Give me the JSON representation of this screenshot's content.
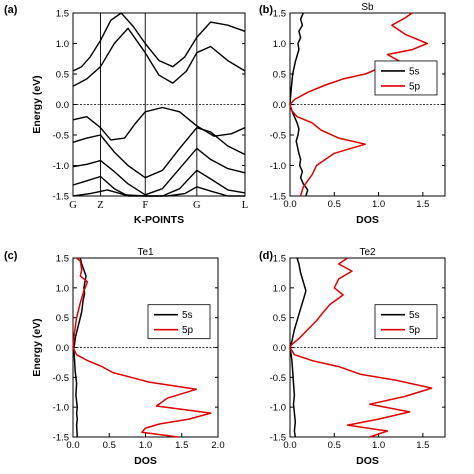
{
  "chart_data": [
    {
      "panel": "(a)",
      "type": "line",
      "xlabel": "K-POINTS",
      "ylabel": "Energy (eV)",
      "ylim": [
        -1.5,
        1.5
      ],
      "y_ticks": [
        "-1.5",
        "-1.0",
        "-0.5",
        "0.0",
        "0.5",
        "1.0",
        "1.5"
      ],
      "k_points": [
        "G",
        "Z",
        "F",
        "G",
        "L"
      ],
      "k_positions": [
        0,
        0.16,
        0.42,
        0.72,
        1.0
      ],
      "series": [
        {
          "x": [
            0,
            0.05,
            0.1,
            0.16,
            0.22,
            0.28,
            0.35,
            0.42,
            0.5,
            0.58,
            0.65,
            0.72,
            0.8,
            0.9,
            1.0
          ],
          "y": [
            0.55,
            0.62,
            0.78,
            1.05,
            1.38,
            1.5,
            1.28,
            1.0,
            0.72,
            0.62,
            0.78,
            1.1,
            1.35,
            1.3,
            1.2
          ]
        },
        {
          "x": [
            0,
            0.08,
            0.16,
            0.24,
            0.32,
            0.42,
            0.5,
            0.58,
            0.66,
            0.72,
            0.8,
            0.9,
            1.0
          ],
          "y": [
            0.3,
            0.42,
            0.62,
            1.0,
            1.25,
            0.85,
            0.48,
            0.35,
            0.55,
            0.85,
            0.95,
            0.72,
            0.55
          ]
        },
        {
          "x": [
            0,
            0.08,
            0.16,
            0.22,
            0.3,
            0.36,
            0.42,
            0.52,
            0.62,
            0.72,
            0.82,
            0.92,
            1.0
          ],
          "y": [
            -0.25,
            -0.2,
            -0.38,
            -0.58,
            -0.55,
            -0.32,
            -0.12,
            -0.05,
            -0.12,
            -0.35,
            -0.52,
            -0.48,
            -0.38
          ]
        },
        {
          "x": [
            0,
            0.08,
            0.16,
            0.24,
            0.32,
            0.42,
            0.52,
            0.62,
            0.72,
            0.8,
            0.9,
            1.0
          ],
          "y": [
            -0.62,
            -0.55,
            -0.5,
            -0.78,
            -1.0,
            -1.2,
            -1.08,
            -0.72,
            -0.38,
            -0.45,
            -0.68,
            -0.82
          ]
        },
        {
          "x": [
            0,
            0.08,
            0.16,
            0.24,
            0.32,
            0.42,
            0.52,
            0.62,
            0.72,
            0.8,
            0.9,
            1.0
          ],
          "y": [
            -1.02,
            -0.98,
            -0.92,
            -1.1,
            -1.3,
            -1.48,
            -1.38,
            -1.05,
            -0.72,
            -0.9,
            -1.05,
            -1.12
          ]
        },
        {
          "x": [
            0,
            0.08,
            0.16,
            0.24,
            0.32,
            0.42,
            0.52,
            0.62,
            0.72,
            0.8,
            0.9,
            1.0
          ],
          "y": [
            -1.32,
            -1.25,
            -1.18,
            -1.38,
            -1.5,
            -1.5,
            -1.5,
            -1.38,
            -1.08,
            -1.22,
            -1.4,
            -1.45
          ]
        },
        {
          "x": [
            0,
            0.1,
            0.2,
            0.3,
            0.42,
            0.55,
            0.65,
            0.72,
            0.8,
            0.9,
            1.0
          ],
          "y": [
            -1.5,
            -1.46,
            -1.4,
            -1.48,
            -1.5,
            -1.5,
            -1.46,
            -1.35,
            -1.42,
            -1.5,
            -1.5
          ]
        }
      ]
    },
    {
      "panel": "(b)",
      "type": "line",
      "title": "Sb",
      "xlabel": "DOS",
      "xlim": [
        0,
        1.75
      ],
      "ylim": [
        -1.5,
        1.5
      ],
      "x_ticks": [
        "0.0",
        "0.5",
        "1.0",
        "1.5"
      ],
      "y_ticks": [
        "-1.5",
        "-1.0",
        "-0.5",
        "0.0",
        "0.5",
        "1.0",
        "1.5"
      ],
      "legend": [
        "5s",
        "5p"
      ],
      "legend_position": "center-right",
      "colors": {
        "5s": "#000000",
        "5p": "#e00000"
      },
      "series": [
        {
          "name": "5s",
          "x": [
            0.15,
            0.12,
            0.14,
            0.1,
            0.12,
            0.09,
            0.1,
            0.08,
            0.06,
            0.03,
            0.01,
            0.0,
            0.02,
            0.05,
            0.08,
            0.1,
            0.09,
            0.07,
            0.1,
            0.12,
            0.11,
            0.14,
            0.12,
            0.15,
            0.2,
            0.18
          ],
          "y": [
            1.5,
            1.4,
            1.3,
            1.2,
            1.1,
            1.0,
            0.9,
            0.8,
            0.7,
            0.5,
            0.2,
            0.0,
            -0.1,
            -0.2,
            -0.3,
            -0.4,
            -0.5,
            -0.6,
            -0.8,
            -0.9,
            -1.0,
            -1.1,
            -1.2,
            -1.3,
            -1.4,
            -1.5
          ]
        },
        {
          "name": "5p",
          "x": [
            1.38,
            1.3,
            1.15,
            1.3,
            1.55,
            1.38,
            1.1,
            1.25,
            1.05,
            0.85,
            0.6,
            0.4,
            0.2,
            0.05,
            0.0,
            0.02,
            0.08,
            0.25,
            0.35,
            0.55,
            0.85,
            0.5,
            0.3,
            0.25,
            0.15,
            0.12
          ],
          "y": [
            1.5,
            1.42,
            1.3,
            1.15,
            1.0,
            0.9,
            0.82,
            0.7,
            0.62,
            0.5,
            0.42,
            0.32,
            0.2,
            0.08,
            0.0,
            -0.1,
            -0.2,
            -0.3,
            -0.42,
            -0.55,
            -0.65,
            -0.8,
            -1.0,
            -1.15,
            -1.35,
            -1.5
          ]
        }
      ]
    },
    {
      "panel": "(c)",
      "type": "line",
      "title": "Te1",
      "xlabel": "DOS",
      "ylabel": "Energy (eV)",
      "xlim": [
        0,
        2.0
      ],
      "ylim": [
        -1.5,
        1.5
      ],
      "x_ticks": [
        "0.0",
        "0.5",
        "1.0",
        "1.5",
        "2.0"
      ],
      "y_ticks": [
        "-1.5",
        "-1.0",
        "-0.5",
        "0.0",
        "0.5",
        "1.0",
        "1.5"
      ],
      "legend": [
        "5s",
        "5p"
      ],
      "legend_position": "center-right",
      "colors": {
        "5s": "#000000",
        "5p": "#e00000"
      },
      "series": [
        {
          "name": "5s",
          "x": [
            0.1,
            0.12,
            0.18,
            0.15,
            0.16,
            0.14,
            0.12,
            0.1,
            0.06,
            0.03,
            0.02,
            0.01,
            0.02,
            0.03,
            0.05,
            0.04,
            0.05,
            0.06,
            0.05,
            0.06,
            0.05,
            0.06
          ],
          "y": [
            1.5,
            1.4,
            1.2,
            1.0,
            0.9,
            0.8,
            0.6,
            0.5,
            0.3,
            0.15,
            0.05,
            0.0,
            -0.2,
            -0.4,
            -0.6,
            -0.8,
            -0.9,
            -1.0,
            -1.1,
            -1.2,
            -1.3,
            -1.5
          ]
        },
        {
          "name": "5p",
          "x": [
            0.05,
            0.1,
            0.12,
            0.1,
            0.2,
            0.15,
            0.1,
            0.05,
            0.02,
            0.0,
            0.05,
            0.2,
            0.4,
            0.55,
            0.8,
            1.05,
            1.7,
            1.3,
            1.15,
            1.9,
            1.6,
            1.2,
            1.0,
            0.95,
            1.45
          ],
          "y": [
            1.5,
            1.45,
            1.3,
            1.2,
            1.1,
            0.95,
            0.75,
            0.5,
            0.25,
            0.0,
            -0.12,
            -0.22,
            -0.32,
            -0.42,
            -0.5,
            -0.58,
            -0.7,
            -0.85,
            -0.98,
            -1.1,
            -1.2,
            -1.28,
            -1.35,
            -1.42,
            -1.5
          ]
        }
      ]
    },
    {
      "panel": "(d)",
      "type": "line",
      "title": "Te2",
      "xlabel": "DOS",
      "xlim": [
        0,
        1.75
      ],
      "ylim": [
        -1.5,
        1.5
      ],
      "x_ticks": [
        "0.0",
        "0.5",
        "1.0",
        "1.5"
      ],
      "y_ticks": [
        "-1.5",
        "-1.0",
        "-0.5",
        "0.0",
        "0.5",
        "1.0",
        "1.5"
      ],
      "legend": [
        "5s",
        "5p"
      ],
      "legend_position": "center-right",
      "colors": {
        "5s": "#000000",
        "5p": "#e00000"
      },
      "series": [
        {
          "name": "5s",
          "x": [
            0.08,
            0.1,
            0.12,
            0.15,
            0.18,
            0.16,
            0.12,
            0.08,
            0.05,
            0.02,
            0.0,
            0.02,
            0.03,
            0.04,
            0.05,
            0.04,
            0.05,
            0.06,
            0.05,
            0.06
          ],
          "y": [
            1.5,
            1.4,
            1.25,
            1.1,
            0.95,
            0.85,
            0.65,
            0.45,
            0.3,
            0.1,
            0.0,
            -0.2,
            -0.4,
            -0.6,
            -0.8,
            -0.95,
            -1.1,
            -1.25,
            -1.4,
            -1.5
          ]
        },
        {
          "name": "5p",
          "x": [
            0.65,
            0.55,
            0.7,
            0.55,
            0.5,
            0.6,
            0.45,
            0.38,
            0.3,
            0.2,
            0.1,
            0.02,
            0.0,
            0.05,
            0.25,
            0.55,
            0.8,
            1.2,
            1.6,
            1.3,
            0.9,
            1.35,
            1.0,
            0.65,
            1.1,
            0.9
          ],
          "y": [
            1.5,
            1.4,
            1.28,
            1.15,
            1.0,
            0.88,
            0.72,
            0.6,
            0.45,
            0.3,
            0.15,
            0.05,
            0.0,
            -0.12,
            -0.22,
            -0.32,
            -0.45,
            -0.55,
            -0.68,
            -0.82,
            -0.95,
            -1.08,
            -1.2,
            -1.3,
            -1.4,
            -1.5
          ]
        }
      ]
    }
  ]
}
